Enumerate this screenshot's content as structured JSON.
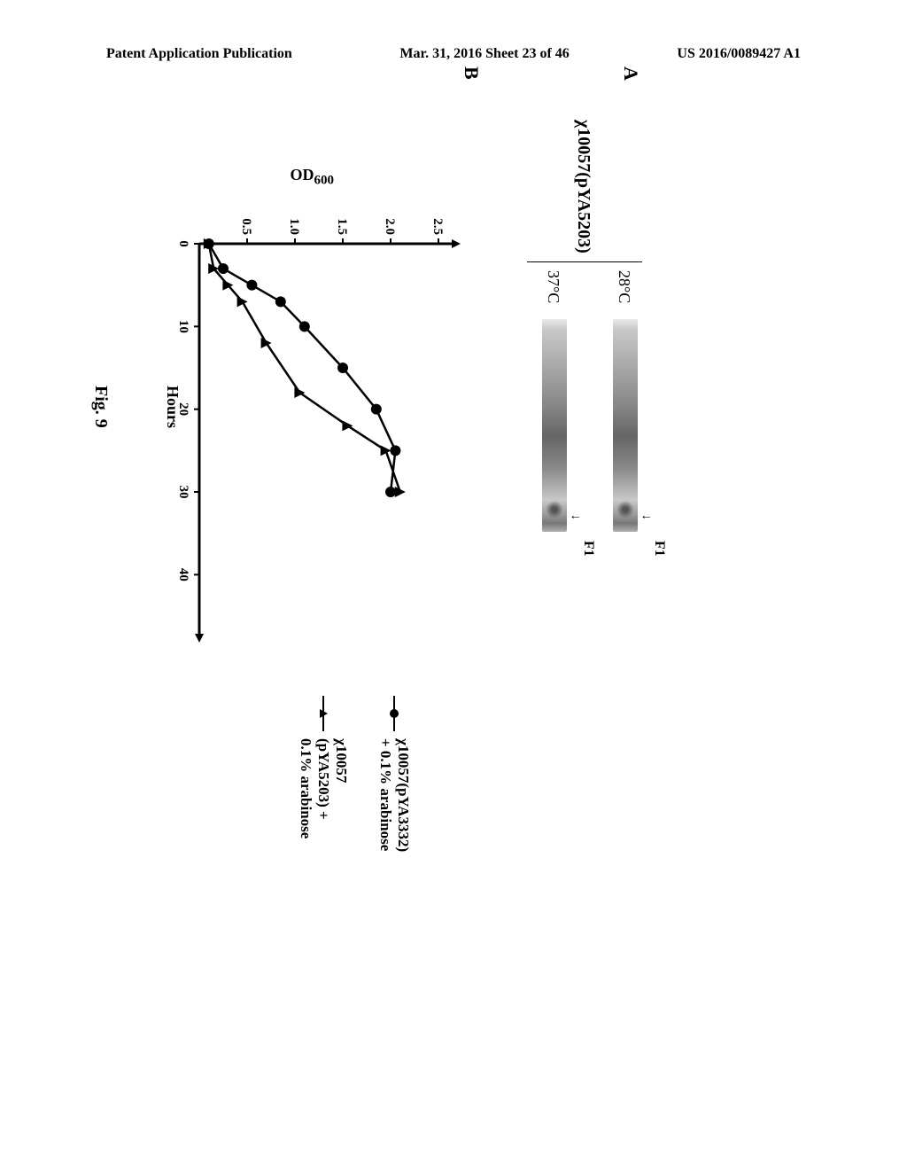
{
  "header": {
    "left": "Patent Application Publication",
    "center": "Mar. 31, 2016  Sheet 23 of 46",
    "right": "US 2016/0089427 A1"
  },
  "panels": {
    "a_label": "A",
    "b_label": "B"
  },
  "blot": {
    "strain": "χ10057(pYA5203)",
    "temp1": "28°C",
    "temp2": "37°C",
    "marker": "F1"
  },
  "chart": {
    "type": "line",
    "xlabel": "Hours",
    "ylabel": "OD",
    "ylabel_sub": "600",
    "xlim": [
      0,
      45
    ],
    "ylim": [
      0,
      2.5
    ],
    "xticks": [
      0,
      10,
      20,
      30,
      40
    ],
    "yticks": [
      "0.5",
      "1.0",
      "1.5",
      "2.0",
      "2.5"
    ],
    "ytick_values": [
      0.5,
      1.0,
      1.5,
      2.0,
      2.5
    ],
    "background_color": "#ffffff",
    "axis_color": "#000000",
    "line_width": 2.5,
    "marker_size": 6,
    "series": [
      {
        "name": "χ10057(pYA3332) + 0.1% arabinose",
        "marker": "circle",
        "color": "#000000",
        "x": [
          0,
          3,
          5,
          7,
          10,
          15,
          20,
          25,
          30
        ],
        "y": [
          0.1,
          0.25,
          0.55,
          0.85,
          1.1,
          1.5,
          1.85,
          2.05,
          2.0
        ]
      },
      {
        "name": "χ10057 (pYA5203) + 0.1% arabinose",
        "marker": "triangle",
        "color": "#000000",
        "x": [
          0,
          3,
          5,
          7,
          12,
          18,
          22,
          25,
          30
        ],
        "y": [
          0.1,
          0.15,
          0.3,
          0.45,
          0.7,
          1.05,
          1.55,
          1.95,
          2.1
        ]
      }
    ]
  },
  "figure_label": "Fig. 9"
}
